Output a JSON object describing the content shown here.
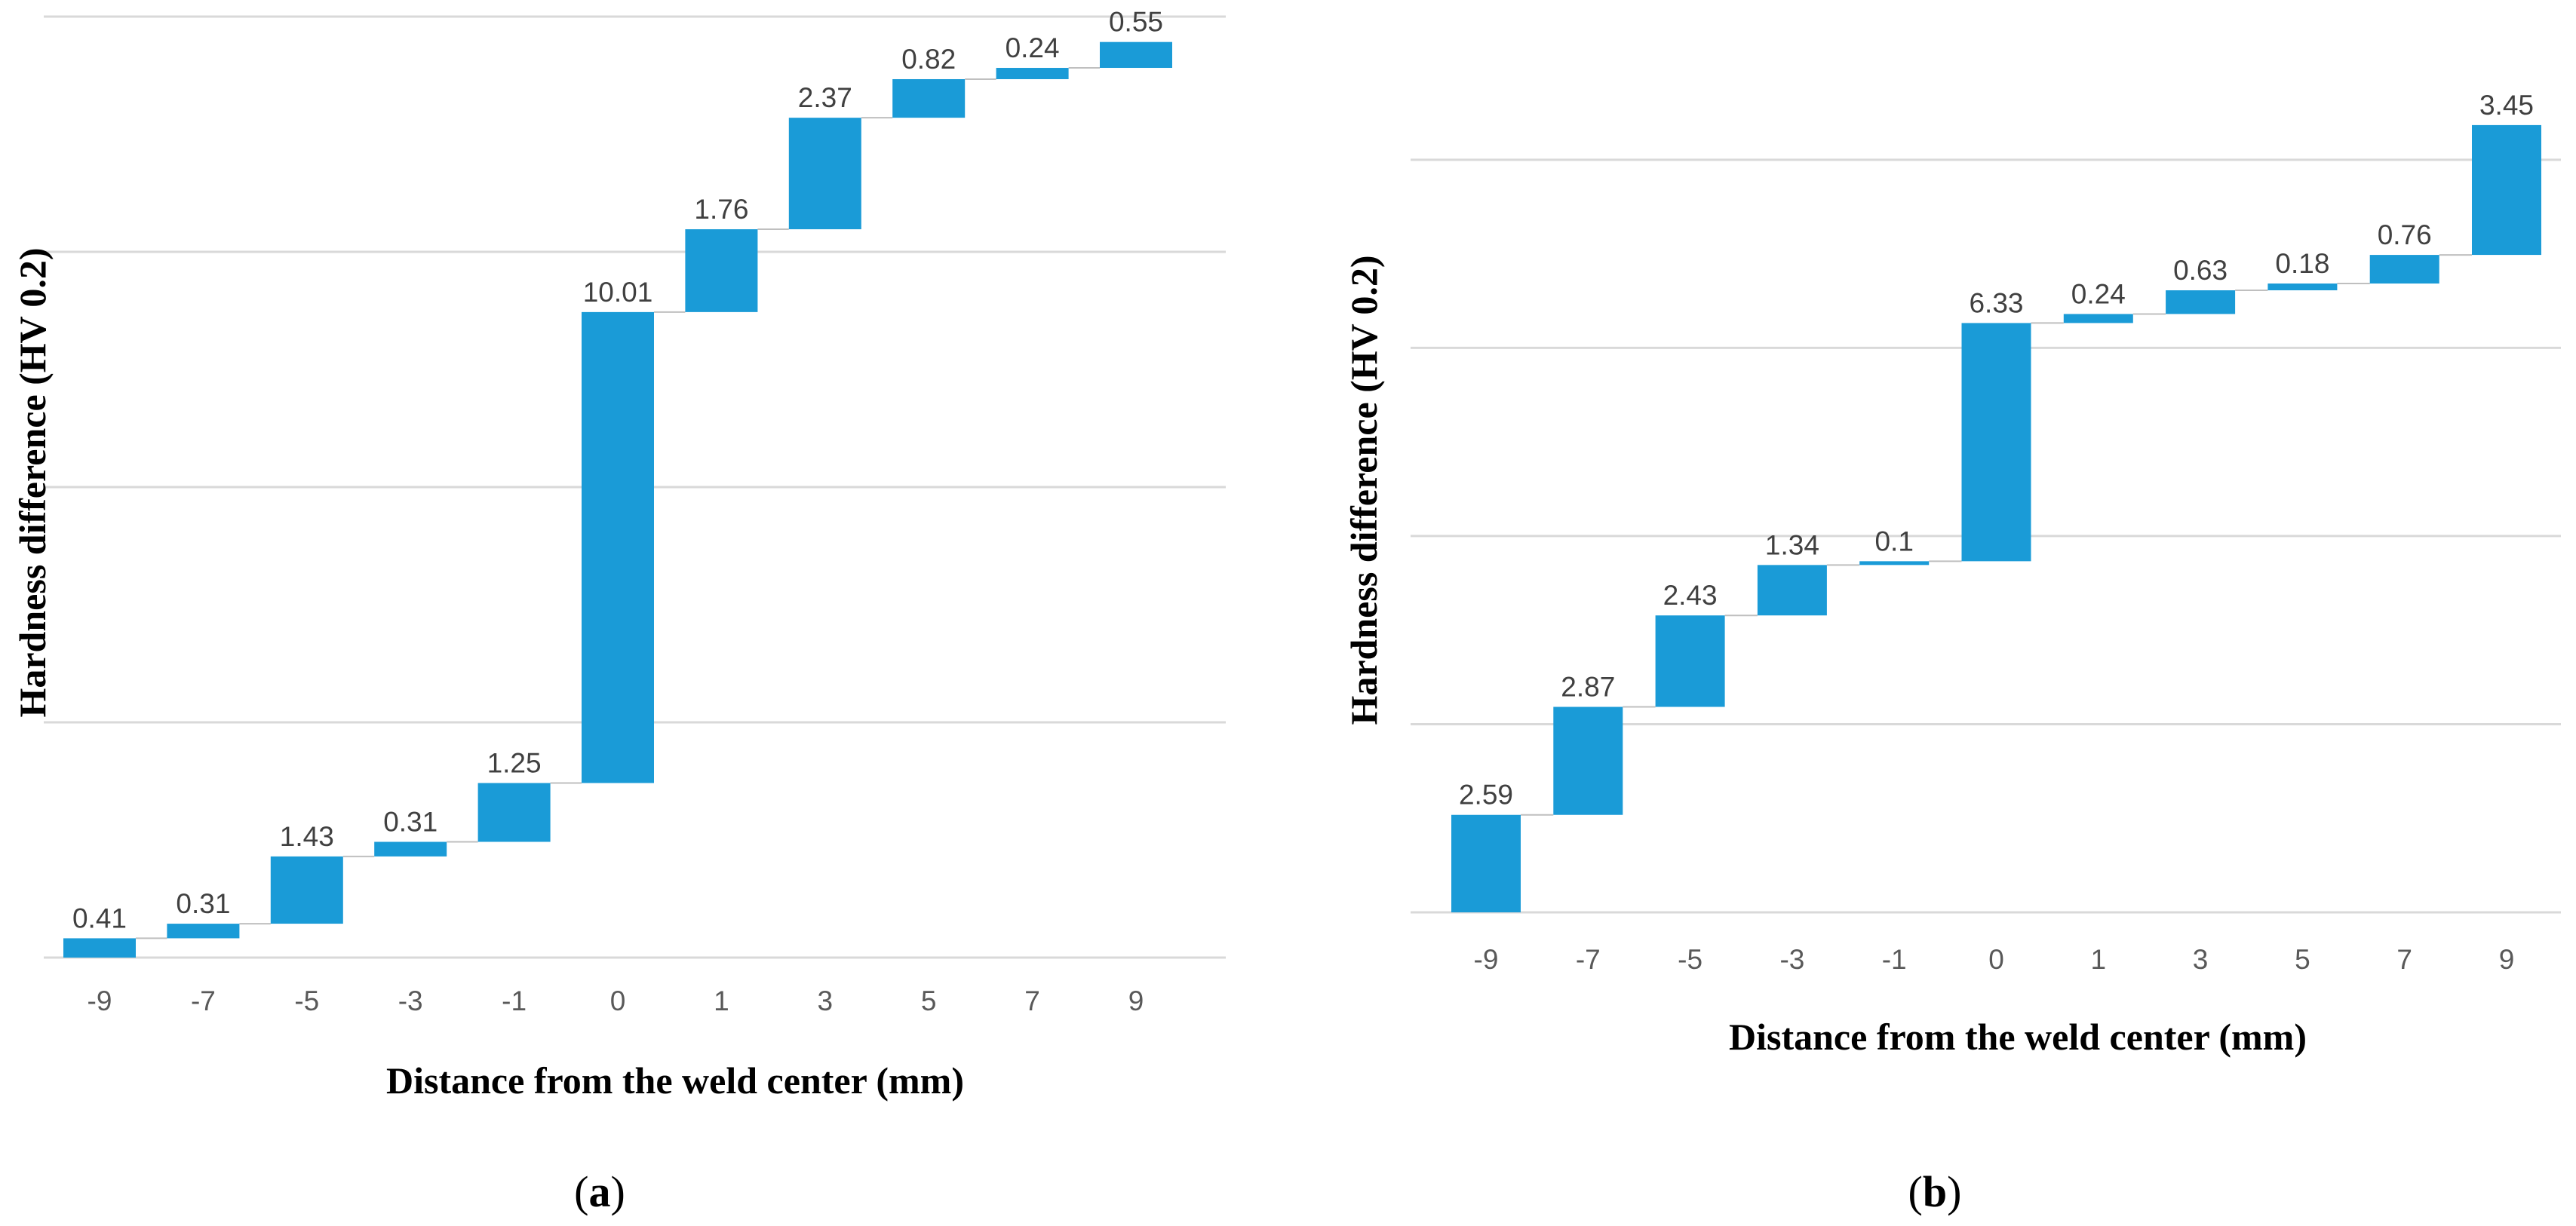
{
  "chart_data": [
    {
      "id": "a",
      "type": "waterfall",
      "panel_label": "a",
      "xlabel": "Distance from the weld center (mm)",
      "ylabel": "Hardness difference (HV 0.2)",
      "categories": [
        "-9",
        "-7",
        "-5",
        "-3",
        "-1",
        "0",
        "1",
        "3",
        "5",
        "7",
        "9"
      ],
      "values": [
        0.41,
        0.31,
        1.43,
        0.31,
        1.25,
        10.01,
        1.76,
        2.37,
        0.82,
        0.24,
        0.55
      ],
      "value_labels": [
        "0.41",
        "0.31",
        "1.43",
        "0.31",
        "1.25",
        "10.01",
        "1.76",
        "2.37",
        "0.82",
        "0.24",
        "0.55"
      ],
      "ylim": [
        0,
        20
      ],
      "y_gridlines": [
        0,
        5,
        10,
        15,
        20
      ],
      "color": "#1a9bd7"
    },
    {
      "id": "b",
      "type": "waterfall",
      "panel_label": "b",
      "xlabel": "Distance from the weld center (mm)",
      "ylabel": "Hardness difference (HV 0.2)",
      "categories": [
        "-9",
        "-7",
        "-5",
        "-3",
        "-1",
        "0",
        "1",
        "3",
        "5",
        "7",
        "9"
      ],
      "values": [
        2.59,
        2.87,
        2.43,
        1.34,
        0.1,
        6.33,
        0.24,
        0.63,
        0.18,
        0.76,
        3.45
      ],
      "value_labels": [
        "2.59",
        "2.87",
        "2.43",
        "1.34",
        "0.1",
        "6.33",
        "0.24",
        "0.63",
        "0.18",
        "0.76",
        "3.45"
      ],
      "ylim": [
        0,
        22
      ],
      "y_gridlines": [
        0,
        5,
        10,
        15,
        20
      ],
      "color": "#1a9bd7"
    }
  ]
}
